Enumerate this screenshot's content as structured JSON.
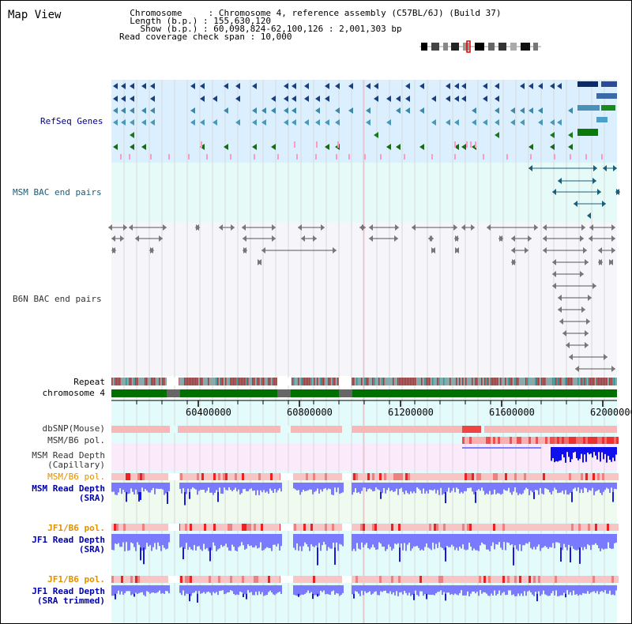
{
  "header": {
    "title": "Map View",
    "info_lines": [
      "  Chromosome     : Chromosome 4, reference assembly (C57BL/6J) (Build 37)",
      "  Length (b.p.) : 155,630,120",
      "    Show (b.p.) : 60,098,824-62,100,126 : 2,001,303 bp",
      "Read coverage check span : 10,000"
    ]
  },
  "tracks": {
    "refseq_genes": {
      "label": "RefSeq Genes",
      "color": "#00008b"
    },
    "msm_bac": {
      "label": "MSM BAC end pairs",
      "color": "#1a5f7a"
    },
    "b6n_bac": {
      "label": "B6N BAC end pairs",
      "color": "#333333"
    },
    "repeat": {
      "label": "Repeat",
      "color": "#000000"
    },
    "chromosome": {
      "label": "chromosome 4",
      "color": "#000000"
    },
    "dbsnp": {
      "label": "dbSNP(Mouse)",
      "color": "#333333"
    },
    "msm_b6_pol_1": {
      "label": "MSM/B6 pol.",
      "color": "#333333"
    },
    "msm_read_depth_cap": {
      "label": "MSM Read Depth\n(Capillary)",
      "color": "#333333"
    },
    "msm_b6_pol_2": {
      "label": "MSM/B6 pol.",
      "color": "#e09000"
    },
    "msm_read_depth_sra": {
      "label": "MSM Read Depth\n(SRA)",
      "color": "#0000aa"
    },
    "jf1_b6_pol_1": {
      "label": "JF1/B6 pol.",
      "color": "#e09000"
    },
    "jf1_read_depth_sra": {
      "label": "JF1 Read Depth\n(SRA)",
      "color": "#0000aa"
    },
    "jf1_b6_pol_2": {
      "label": "JF1/B6 pol.",
      "color": "#e09000"
    },
    "jf1_read_depth_trim": {
      "label": "JF1 Read Depth\n(SRA trimmed)",
      "color": "#0000aa"
    }
  },
  "axis": {
    "tick_labels": [
      "60400000",
      "60800000",
      "61200000",
      "61600000",
      "62000000"
    ]
  }
}
